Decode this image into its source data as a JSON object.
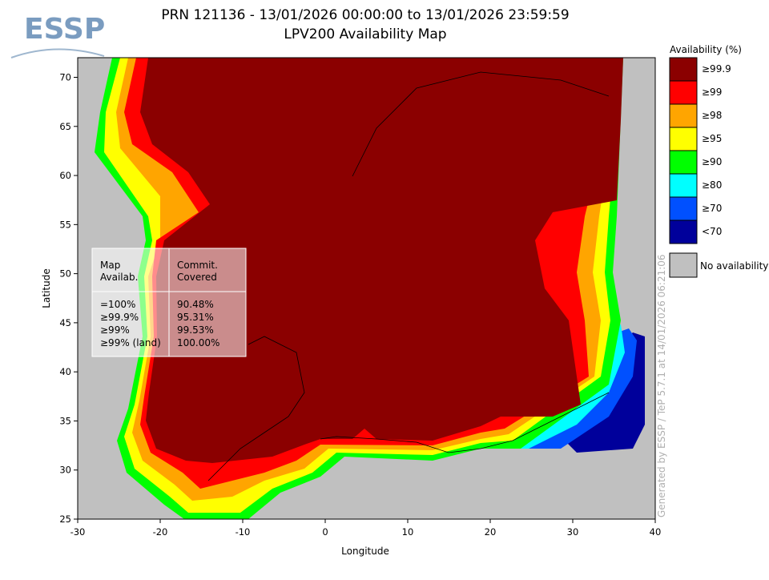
{
  "logo": "ESSP",
  "title": "PRN 121136 - 13/01/2026 00:00:00 to 13/01/2026 23:59:59",
  "subtitle": "LPV200 Availability Map",
  "x_label": "Longitude",
  "y_label": "Latitude",
  "xlim": [
    -30,
    40
  ],
  "ylim": [
    25,
    72
  ],
  "xticks": [
    -30,
    -20,
    -10,
    0,
    10,
    20,
    30,
    40
  ],
  "yticks": [
    25,
    30,
    35,
    40,
    45,
    50,
    55,
    60,
    65,
    70
  ],
  "legend": {
    "title": "Availability (%)",
    "items": [
      {
        "label": "≥99.9",
        "color": "#8b0000"
      },
      {
        "label": "≥99",
        "color": "#ff0000"
      },
      {
        "label": "≥98",
        "color": "#ffa500"
      },
      {
        "label": "≥95",
        "color": "#ffff00"
      },
      {
        "label": "≥90",
        "color": "#00ff00"
      },
      {
        "label": "≥80",
        "color": "#00ffff"
      },
      {
        "label": "≥70",
        "color": "#0050ff"
      },
      {
        "label": "<70",
        "color": "#00009b"
      }
    ],
    "none": {
      "label": "No availability",
      "color": "#c0c0c0"
    }
  },
  "table": {
    "header": [
      "Map\nAvailab.",
      "Commit.\nCovered"
    ],
    "rows": [
      [
        "=100%",
        "90.48%"
      ],
      [
        "≥99.9%",
        "95.31%"
      ],
      [
        "≥99%",
        "99.53%"
      ],
      [
        "≥99% (land)",
        "100.00%"
      ]
    ]
  },
  "footer_note": "Generated by ESSP / TeP 5.7.1 at 14/01/2026 06:21:06"
}
